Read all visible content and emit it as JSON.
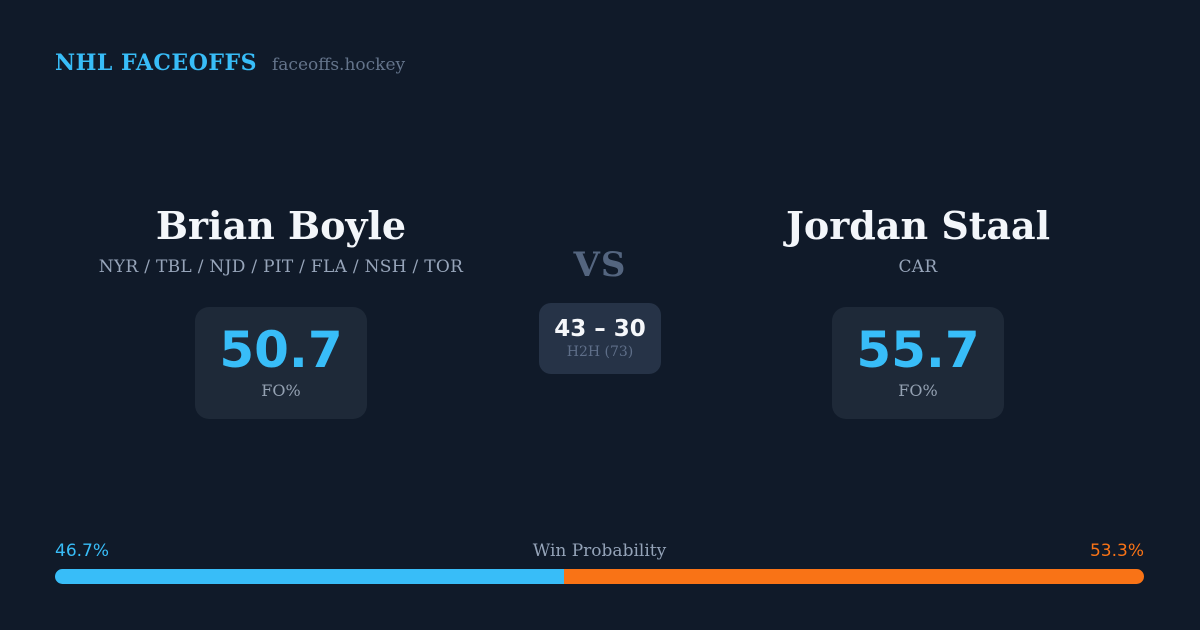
{
  "header": {
    "brand": "NHL FACEOFFS",
    "site": "faceoffs.hockey"
  },
  "players": [
    {
      "name": "Brian Boyle",
      "teams": "NYR / TBL / NJD / PIT / FLA / NSH / TOR",
      "fo_pct": "50.7",
      "fo_label": "FO%"
    },
    {
      "name": "Jordan Staal",
      "teams": "CAR",
      "fo_pct": "55.7",
      "fo_label": "FO%"
    }
  ],
  "matchup": {
    "vs_label": "VS",
    "h2h_score": "43 – 30",
    "h2h_label": "H2H (73)"
  },
  "win_probability": {
    "title": "Win Probability",
    "left_label": "46.7%",
    "right_label": "53.3%",
    "left_value": 46.7,
    "right_value": 53.3
  },
  "colors": {
    "background": "#101a29",
    "accent_blue": "#38bdf8",
    "accent_orange": "#f97316",
    "stat_card_bg": "#1e2938",
    "h2h_card_bg": "#263347",
    "text_primary": "#f3f6fa",
    "text_muted": "#97a5ba",
    "text_dim": "#5e6e88"
  }
}
